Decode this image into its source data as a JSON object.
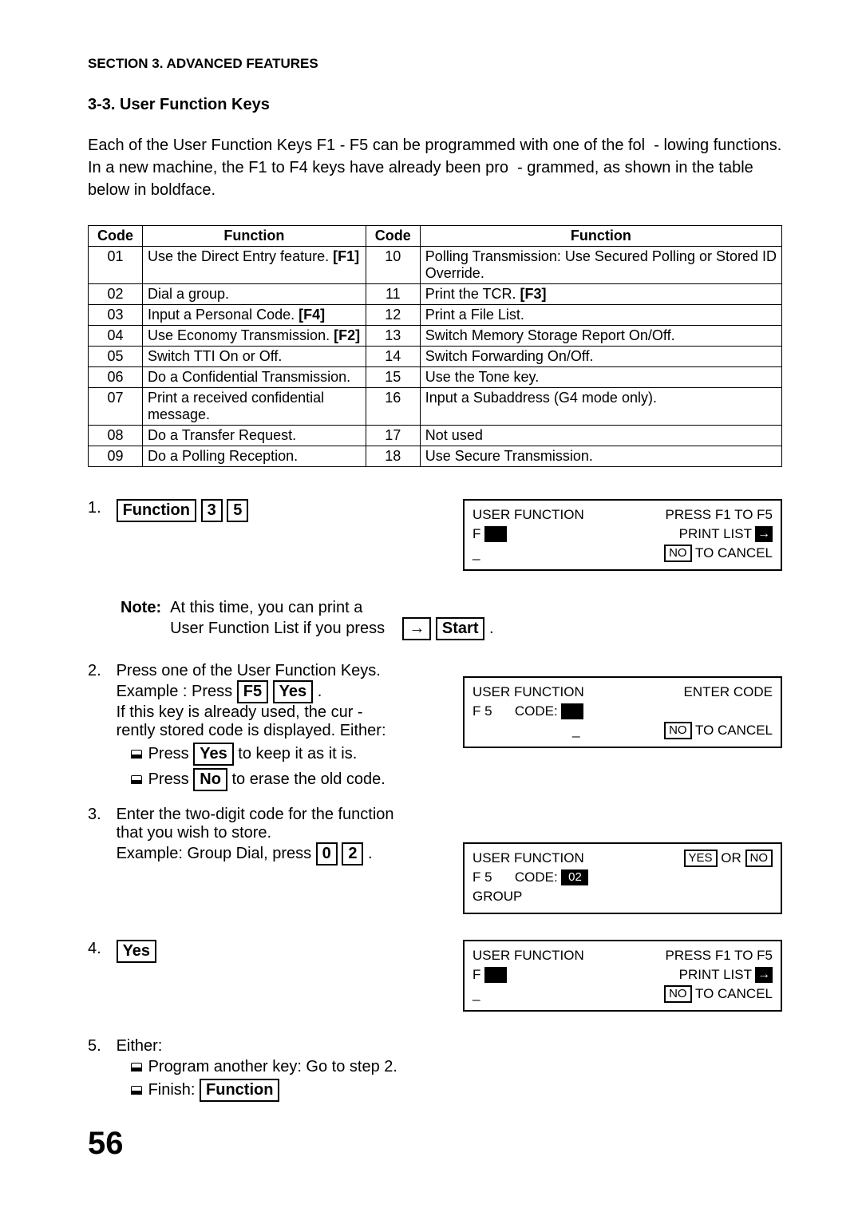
{
  "header": "SECTION 3. ADVANCED FEATURES",
  "subsection": "3-3. User Function Keys",
  "intro": "Each of the User Function Keys F1 - F5 can be programmed with one of the fol  - lowing functions. In a new machine, the F1 to F4 keys have already been pro  - grammed, as shown in the table below in boldface.",
  "table": {
    "headers": [
      "Code",
      "Function",
      "Code",
      "Function"
    ],
    "rows": [
      {
        "c1": "01",
        "f1_pre": "Use the Direct Entry feature.  ",
        "f1_bold": "[F1]",
        "c2": "10",
        "f2": "Polling Transmission: Use Secured Polling or Stored ID Override."
      },
      {
        "c1": "02",
        "f1_pre": "Dial a group.",
        "f1_bold": "",
        "c2": "11",
        "f2_pre": "Print the TCR.  ",
        "f2_bold": "[F3]"
      },
      {
        "c1": "03",
        "f1_pre": "Input a Personal Code.  ",
        "f1_bold": "[F4]",
        "c2": "12",
        "f2": "Print a File List."
      },
      {
        "c1": "04",
        "f1_pre": "Use Economy Transmission.  ",
        "f1_bold": "[F2]",
        "c2": "13",
        "f2": "Switch Memory Storage Report On/Off."
      },
      {
        "c1": "05",
        "f1_pre": "Switch TTI On or Off.",
        "f1_bold": "",
        "c2": "14",
        "f2": "Switch Forwarding On/Off."
      },
      {
        "c1": "06",
        "f1_pre": "Do a Confidential Transmission.",
        "f1_bold": "",
        "c2": "15",
        "f2": "Use the Tone key."
      },
      {
        "c1": "07",
        "f1_pre": "Print a received confidential message.",
        "f1_bold": "",
        "c2": "16",
        "f2": "Input a Subaddress (G4 mode only)."
      },
      {
        "c1": "08",
        "f1_pre": "Do a Transfer Request.",
        "f1_bold": "",
        "c2": "17",
        "f2": "Not used"
      },
      {
        "c1": "09",
        "f1_pre": "Do a Polling Reception.",
        "f1_bold": "",
        "c2": "18",
        "f2": "Use Secure Transmission."
      }
    ]
  },
  "keys": {
    "function": "Function",
    "k3": "3",
    "k5": "5",
    "arrow": "→",
    "start": "Start",
    "f5": "F5",
    "yes": "Yes",
    "no": "No",
    "k0": "0",
    "k2": "2"
  },
  "note": {
    "label": "Note:",
    "line1": "At this time, you can print a",
    "line2": "User Function List if you press"
  },
  "step1": {
    "num": "1."
  },
  "step2": {
    "num": "2.",
    "l1": "Press one of the User Function Keys.",
    "l2a": "Example : Press ",
    "l2b": " .",
    "l3": "If this key is already used, the cur -",
    "l4": "rently stored code is displayed. Either:",
    "b1a": "Press  ",
    "b1b": "  to keep it as it is.",
    "b2a": "Press  ",
    "b2b": "  to erase the old code."
  },
  "step3": {
    "num": "3.",
    "l1": "Enter the two-digit code for the function",
    "l2": "that you wish to store.",
    "l3a": "Example: Group Dial, press  ",
    "l3b": " ."
  },
  "step4": {
    "num": "4."
  },
  "step5": {
    "num": "5.",
    "l1": "Either:",
    "b1": "Program another key: Go to step 2.",
    "b2": "Finish:  "
  },
  "lcd": {
    "uf": "USER FUNCTION",
    "press": "PRESS F1  TO F5",
    "printlist": "PRINT LIST",
    "tocancel": " TO CANCEL",
    "enter": "ENTER CODE",
    "f5": "F 5",
    "code": "CODE:",
    "code02": "02",
    "group": "GROUP",
    "yes": "YES",
    "or": " OR ",
    "no": "NO",
    "F": "F",
    "dash": "_"
  },
  "pagenum": "56"
}
